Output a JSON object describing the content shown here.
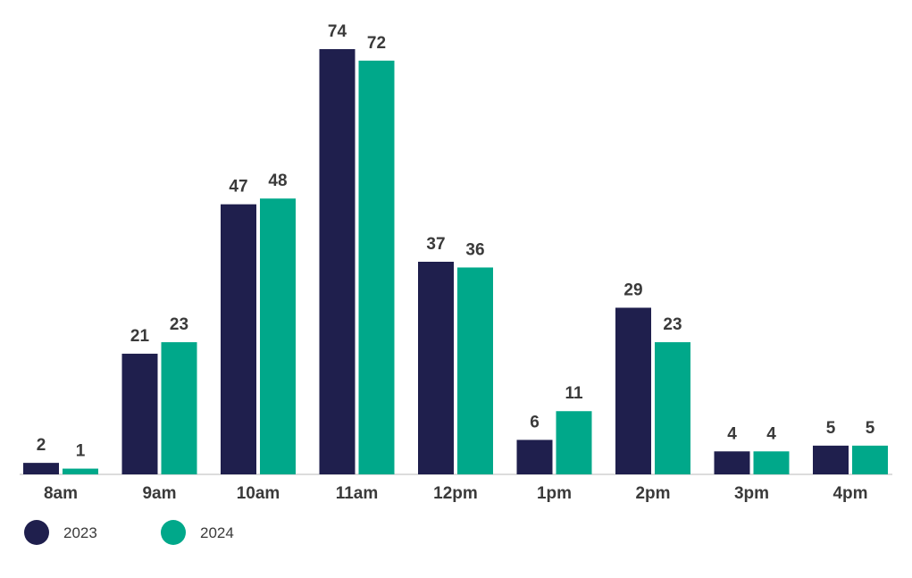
{
  "chart_data": {
    "type": "bar",
    "categories": [
      "8am",
      "9am",
      "10am",
      "11am",
      "12pm",
      "1pm",
      "2pm",
      "3pm",
      "4pm"
    ],
    "series": [
      {
        "name": "2023",
        "color": "#1f1f4d",
        "values": [
          2,
          21,
          47,
          74,
          37,
          6,
          29,
          4,
          5
        ]
      },
      {
        "name": "2024",
        "color": "#00a88a",
        "values": [
          1,
          23,
          48,
          72,
          36,
          11,
          23,
          4,
          5
        ]
      }
    ],
    "ylim": [
      0,
      74
    ],
    "grid": false,
    "legend_position": "bottom-left",
    "data_labels": true
  }
}
